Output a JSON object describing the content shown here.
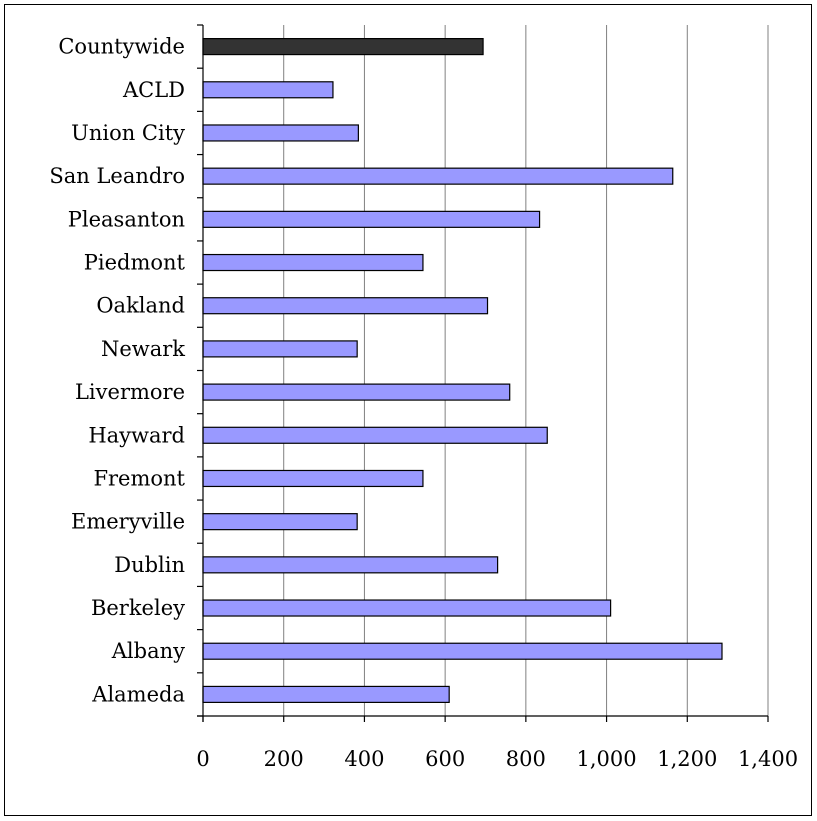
{
  "colors": {
    "bar_fill": "#9999ff",
    "highlight_fill": "#333333",
    "bar_stroke": "#000000",
    "grid": "#808080",
    "axis": "#000000"
  },
  "chart_data": {
    "type": "bar",
    "orientation": "horizontal",
    "title": "",
    "xlabel": "",
    "ylabel": "",
    "xlim": [
      0,
      1400
    ],
    "xticks": [
      0,
      200,
      400,
      600,
      800,
      1000,
      1200,
      1400
    ],
    "xtick_labels": [
      "0",
      "200",
      "400",
      "600",
      "800",
      "1,000",
      "1,200",
      "1,400"
    ],
    "grid": "vertical",
    "legend": "none",
    "highlight_category": "Countywide",
    "categories": [
      "Countywide",
      "ACLD",
      "Union City",
      "San Leandro",
      "Pleasanton",
      "Piedmont",
      "Oakland",
      "Newark",
      "Livermore",
      "Hayward",
      "Fremont",
      "Emeryville",
      "Dublin",
      "Berkeley",
      "Albany",
      "Alameda"
    ],
    "values": [
      694,
      322,
      385,
      1164,
      834,
      545,
      705,
      382,
      760,
      853,
      545,
      382,
      730,
      1010,
      1286,
      610
    ]
  }
}
